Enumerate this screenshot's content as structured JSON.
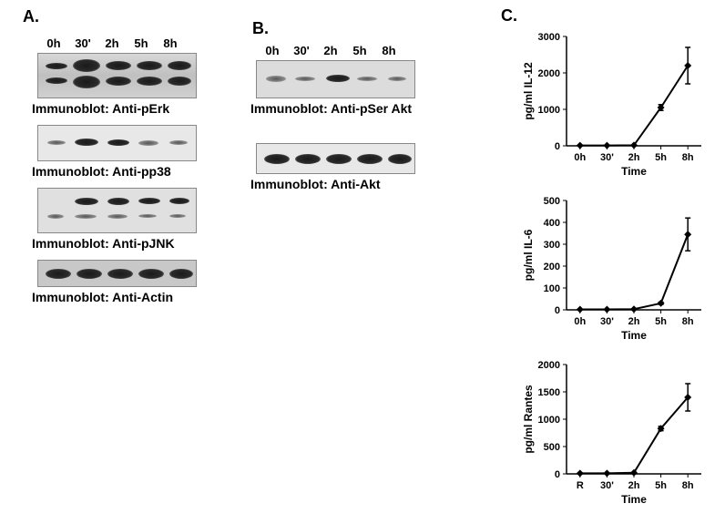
{
  "panels": {
    "a": {
      "label": "A."
    },
    "b": {
      "label": "B."
    },
    "c": {
      "label": "C."
    }
  },
  "timepoints": [
    "0h",
    "30'",
    "2h",
    "5h",
    "8h"
  ],
  "panelA": {
    "blots": [
      {
        "label": "Immunoblot:  Anti-pErk"
      },
      {
        "label": "Immunoblot:  Anti-pp38"
      },
      {
        "label": "Immunoblot:  Anti-pJNK"
      },
      {
        "label": "Immunoblot:  Anti-Actin"
      }
    ]
  },
  "panelB": {
    "blots": [
      {
        "label": "Immunoblot:  Anti-pSer Akt"
      },
      {
        "label": "Immunoblot:  Anti-Akt"
      }
    ]
  },
  "charts": {
    "il12": {
      "type": "line",
      "ylabel": "pg/ml  IL-12",
      "xlabel": "Time",
      "xticks": [
        "0h",
        "30'",
        "2h",
        "5h",
        "8h"
      ],
      "ylim": [
        0,
        3000
      ],
      "yticks": [
        0,
        1000,
        2000,
        3000
      ],
      "values": [
        10,
        10,
        15,
        1050,
        2200
      ],
      "errors": [
        0,
        0,
        0,
        80,
        500
      ],
      "line_color": "#000000",
      "marker": "diamond",
      "marker_size": 8,
      "background_color": "#ffffff",
      "axis_color": "#000000",
      "tick_fontsize": 11,
      "label_fontsize": 12
    },
    "il6": {
      "type": "line",
      "ylabel": "pg/ml IL-6",
      "xlabel": "Time",
      "xticks": [
        "0h",
        "30'",
        "2h",
        "5h",
        "8h"
      ],
      "ylim": [
        0,
        500
      ],
      "yticks": [
        0,
        100,
        200,
        300,
        400,
        500
      ],
      "values": [
        2,
        2,
        3,
        30,
        345
      ],
      "errors": [
        0,
        0,
        0,
        5,
        75
      ],
      "line_color": "#000000",
      "marker": "diamond",
      "marker_size": 8,
      "background_color": "#ffffff",
      "axis_color": "#000000",
      "tick_fontsize": 11,
      "label_fontsize": 12
    },
    "rantes": {
      "type": "line",
      "ylabel": "pg/ml Rantes",
      "xlabel": "Time",
      "xticks": [
        "R",
        "30'",
        "2h",
        "5h",
        "8h"
      ],
      "ylim": [
        0,
        2000
      ],
      "yticks": [
        0,
        500,
        1000,
        1500,
        2000
      ],
      "values": [
        10,
        10,
        20,
        830,
        1400
      ],
      "errors": [
        0,
        0,
        0,
        40,
        250
      ],
      "line_color": "#000000",
      "marker": "diamond",
      "marker_size": 8,
      "background_color": "#ffffff",
      "axis_color": "#000000",
      "tick_fontsize": 11,
      "label_fontsize": 12
    }
  }
}
